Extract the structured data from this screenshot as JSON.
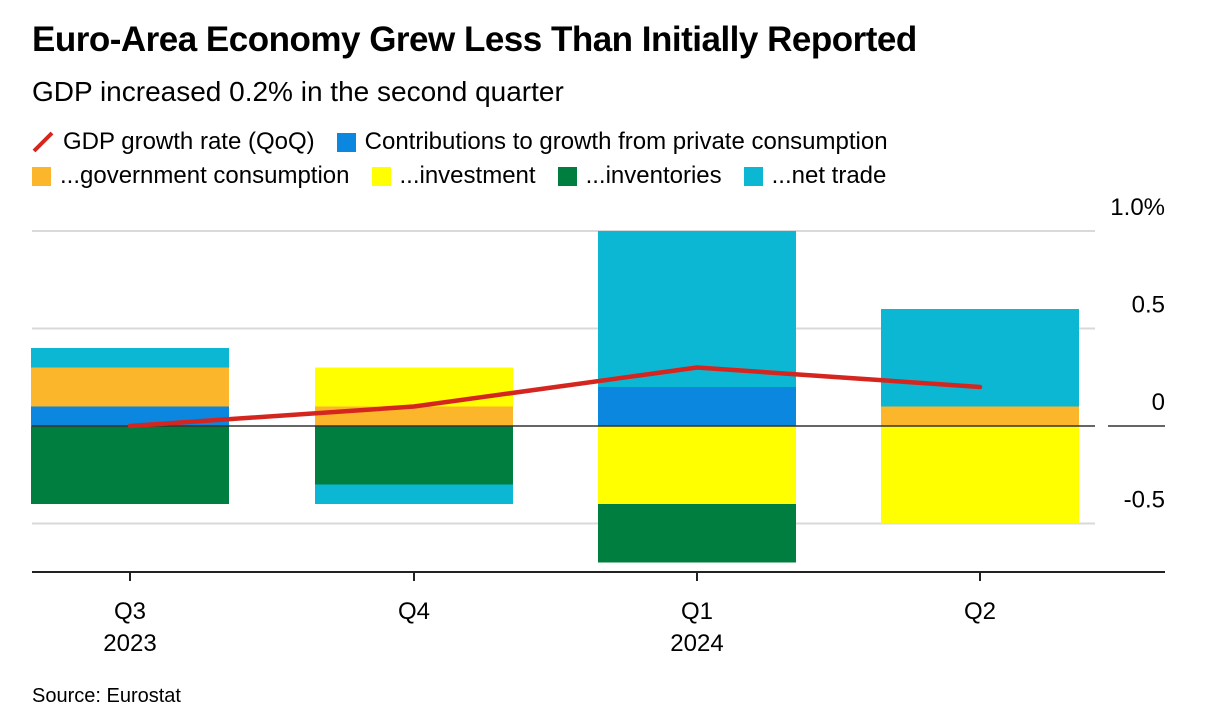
{
  "title": "Euro-Area Economy Grew Less Than Initially Reported",
  "subtitle": "GDP increased 0.2% in the second quarter",
  "source": "Source: Eurostat",
  "legend": [
    {
      "label": "GDP growth rate (QoQ)",
      "kind": "line",
      "color": "#d4261f"
    },
    {
      "label": "Contributions to growth from private consumption",
      "kind": "box",
      "color": "#0b87e0"
    },
    {
      "label": "...government consumption",
      "kind": "box",
      "color": "#fbb62b"
    },
    {
      "label": "...investment",
      "kind": "box",
      "color": "#ffff00"
    },
    {
      "label": "...inventories",
      "kind": "box",
      "color": "#007e3f"
    },
    {
      "label": "...net trade",
      "kind": "box",
      "color": "#0cb7d4"
    }
  ],
  "chart_data": {
    "type": "bar",
    "stacked": true,
    "categories": [
      "Q3",
      "Q4",
      "Q1",
      "Q2"
    ],
    "category_years": [
      "2023",
      "",
      "2024",
      ""
    ],
    "ylim": [
      -0.75,
      1.0
    ],
    "yticks": [
      {
        "value": 1.0,
        "label": "1.0%"
      },
      {
        "value": 0.5,
        "label": "0.5"
      },
      {
        "value": 0,
        "label": "0"
      },
      {
        "value": -0.5,
        "label": "-0.5"
      }
    ],
    "grid": true,
    "series": [
      {
        "name": "Contributions to growth from private consumption",
        "color": "#0b87e0",
        "values": [
          0.1,
          0.0,
          0.2,
          0.0
        ]
      },
      {
        "name": "...government consumption",
        "color": "#fbb62b",
        "values": [
          0.2,
          0.1,
          0.0,
          0.1
        ]
      },
      {
        "name": "...investment",
        "color": "#ffff00",
        "values": [
          0.0,
          0.2,
          -0.4,
          -0.5
        ]
      },
      {
        "name": "...inventories",
        "color": "#007e3f",
        "values": [
          -0.4,
          -0.3,
          -0.3,
          0.0
        ]
      },
      {
        "name": "...net trade",
        "color": "#0cb7d4",
        "values": [
          0.1,
          -0.1,
          0.8,
          0.5
        ]
      }
    ],
    "line": {
      "name": "GDP growth rate (QoQ)",
      "color": "#d4261f",
      "values": [
        0.0,
        0.1,
        0.3,
        0.2
      ]
    }
  }
}
